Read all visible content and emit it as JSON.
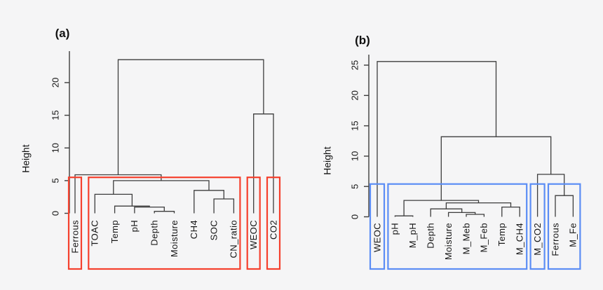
{
  "figure": {
    "background": "#f5f5f6",
    "text_color": "#161616"
  },
  "chart_data": [
    {
      "type": "dendrogram",
      "panel_label": "(a)",
      "ylabel": "Height",
      "ylim": [
        0,
        23.5
      ],
      "yticks": [
        0,
        5,
        10,
        15,
        20
      ],
      "line_color": "#3d3d3d",
      "cluster_box_color": "#f5402d",
      "leaves": [
        "Ferrous",
        "TOAC",
        "Temp",
        "pH",
        "Depth",
        "Moisture",
        "CH4",
        "SOC",
        "CN_ratio",
        "WEOC",
        "CO2"
      ],
      "merges": [
        {
          "id": "A1",
          "children": [
            "L4",
            "L5"
          ],
          "height": 0.3
        },
        {
          "id": "A2",
          "children": [
            "L3",
            "A1"
          ],
          "height": 0.95
        },
        {
          "id": "A3",
          "children": [
            "L2",
            "A2"
          ],
          "height": 1.1
        },
        {
          "id": "A4",
          "children": [
            "L1",
            "A3"
          ],
          "height": 2.9
        },
        {
          "id": "A5",
          "children": [
            "L7",
            "L8"
          ],
          "height": 2.2
        },
        {
          "id": "A6",
          "children": [
            "L6",
            "A5"
          ],
          "height": 3.5
        },
        {
          "id": "A7",
          "children": [
            "A4",
            "A6"
          ],
          "height": 5.0
        },
        {
          "id": "A8",
          "children": [
            "L0",
            "A7"
          ],
          "height": 5.9
        },
        {
          "id": "A9",
          "children": [
            "L9",
            "L10"
          ],
          "height": 15.2
        },
        {
          "id": "A10",
          "children": [
            "A8",
            "A9"
          ],
          "height": 23.5
        }
      ],
      "cluster_boxes": {
        "cut_height": 5.5,
        "groups": [
          [
            0,
            0
          ],
          [
            1,
            8
          ],
          [
            9,
            9
          ],
          [
            10,
            10
          ]
        ]
      }
    },
    {
      "type": "dendrogram",
      "panel_label": "(b)",
      "ylabel": "Height",
      "ylim": [
        0,
        25.6
      ],
      "yticks": [
        0,
        5,
        10,
        15,
        20,
        25
      ],
      "line_color": "#3d3d3d",
      "cluster_box_color": "#5b8df5",
      "leaves": [
        "WEOC",
        "pH",
        "M_pH",
        "Depth",
        "Moisture",
        "M_Meb",
        "M_Feb",
        "Temp",
        "M_CH4",
        "M_CO2",
        "Ferrous",
        "M_Fe"
      ],
      "merges": [
        {
          "id": "B1",
          "children": [
            "L1",
            "L2"
          ],
          "height": 0.15
        },
        {
          "id": "B2",
          "children": [
            "L5",
            "L6"
          ],
          "height": 0.4
        },
        {
          "id": "B3",
          "children": [
            "L4",
            "B2"
          ],
          "height": 0.7
        },
        {
          "id": "B4",
          "children": [
            "L3",
            "B3"
          ],
          "height": 1.3
        },
        {
          "id": "B5",
          "children": [
            "L7",
            "L8"
          ],
          "height": 1.6
        },
        {
          "id": "B6",
          "children": [
            "B4",
            "B5"
          ],
          "height": 2.3
        },
        {
          "id": "B7",
          "children": [
            "B1",
            "B6"
          ],
          "height": 2.7
        },
        {
          "id": "B8",
          "children": [
            "L10",
            "L11"
          ],
          "height": 3.5
        },
        {
          "id": "B9",
          "children": [
            "L9",
            "B8"
          ],
          "height": 7.0
        },
        {
          "id": "B10",
          "children": [
            "B7",
            "B9"
          ],
          "height": 13.2
        },
        {
          "id": "B11",
          "children": [
            "L0",
            "B10"
          ],
          "height": 25.6
        }
      ],
      "cluster_boxes": {
        "cut_height": 5.4,
        "groups": [
          [
            0,
            0
          ],
          [
            1,
            8
          ],
          [
            9,
            9
          ],
          [
            10,
            11
          ]
        ]
      }
    }
  ]
}
